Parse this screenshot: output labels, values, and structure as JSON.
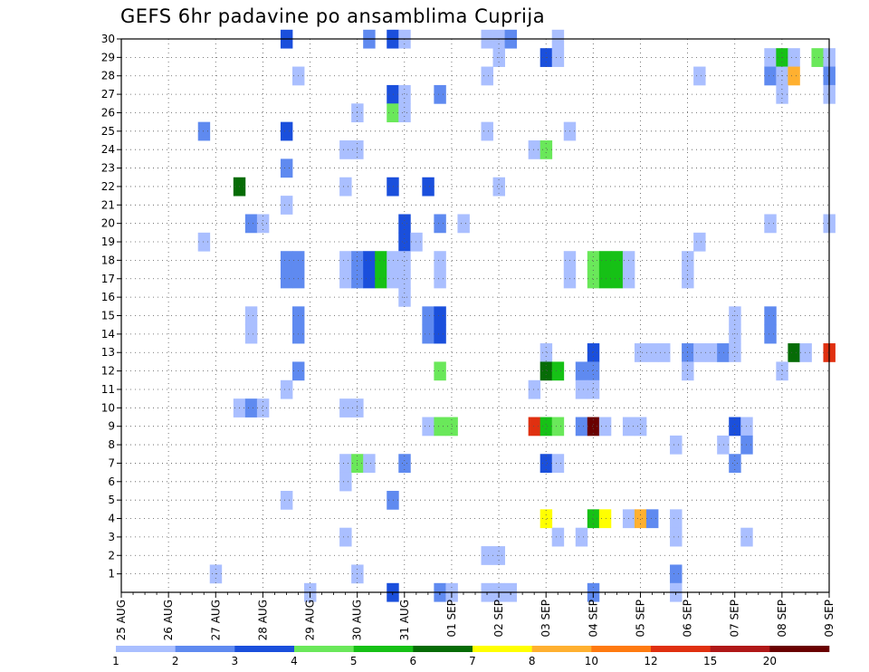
{
  "chart_data": {
    "type": "heatmap",
    "title": "GEFS 6hr padavine po ansamblima Cuprija",
    "xlabel": "",
    "ylabel": "",
    "x_ticks": [
      "25 AUG",
      "26 AUG",
      "27 AUG",
      "28 AUG",
      "29 AUG",
      "30 AUG",
      "31 AUG",
      "01 SEP",
      "02 SEP",
      "03 SEP",
      "04 SEP",
      "05 SEP",
      "06 SEP",
      "07 SEP",
      "08 SEP",
      "09 SEP"
    ],
    "x_range": [
      0,
      60
    ],
    "steps_per_day": 4,
    "y_ticks": [
      1,
      2,
      3,
      4,
      5,
      6,
      7,
      8,
      9,
      10,
      11,
      12,
      13,
      14,
      15,
      16,
      17,
      18,
      19,
      20,
      21,
      22,
      23,
      24,
      25,
      26,
      27,
      28,
      29,
      30
    ],
    "y_range": [
      0,
      30
    ],
    "grid": true,
    "legend_placement": "bottom",
    "legend": {
      "labels": [
        "1",
        "2",
        "3",
        "4",
        "5",
        "6",
        "7",
        "8",
        "10",
        "12",
        "15",
        "20"
      ],
      "colors": [
        "#aabfff",
        "#5f8af0",
        "#1a4fdc",
        "#6ae85a",
        "#16c116",
        "#066c06",
        "#ffff00",
        "#ffb030",
        "#ff7a10",
        "#e03010",
        "#b01818",
        "#6a0000"
      ]
    },
    "cells": [
      {
        "step": 14,
        "member": 30,
        "level": 2
      },
      {
        "step": 21,
        "member": 30,
        "level": 1
      },
      {
        "step": 23,
        "member": 30,
        "level": 2
      },
      {
        "step": 24,
        "member": 30,
        "level": 0
      },
      {
        "step": 31,
        "member": 30,
        "level": 0
      },
      {
        "step": 32,
        "member": 30,
        "level": 0
      },
      {
        "step": 33,
        "member": 30,
        "level": 1
      },
      {
        "step": 37,
        "member": 30,
        "level": 0
      },
      {
        "step": 32,
        "member": 29,
        "level": 0
      },
      {
        "step": 36,
        "member": 29,
        "level": 2
      },
      {
        "step": 37,
        "member": 29,
        "level": 0
      },
      {
        "step": 55,
        "member": 29,
        "level": 0
      },
      {
        "step": 56,
        "member": 29,
        "level": 4
      },
      {
        "step": 57,
        "member": 29,
        "level": 0
      },
      {
        "step": 59,
        "member": 29,
        "level": 3
      },
      {
        "step": 60,
        "member": 29,
        "level": 0
      },
      {
        "step": 15,
        "member": 28,
        "level": 0
      },
      {
        "step": 31,
        "member": 28,
        "level": 0
      },
      {
        "step": 49,
        "member": 28,
        "level": 0
      },
      {
        "step": 55,
        "member": 28,
        "level": 1
      },
      {
        "step": 56,
        "member": 28,
        "level": 0
      },
      {
        "step": 57,
        "member": 28,
        "level": 7
      },
      {
        "step": 60,
        "member": 28,
        "level": 1
      },
      {
        "step": 23,
        "member": 27,
        "level": 2
      },
      {
        "step": 24,
        "member": 27,
        "level": 0
      },
      {
        "step": 27,
        "member": 27,
        "level": 1
      },
      {
        "step": 56,
        "member": 27,
        "level": 0
      },
      {
        "step": 60,
        "member": 27,
        "level": 0
      },
      {
        "step": 20,
        "member": 26,
        "level": 0
      },
      {
        "step": 23,
        "member": 26,
        "level": 3
      },
      {
        "step": 24,
        "member": 26,
        "level": 0
      },
      {
        "step": 7,
        "member": 25,
        "level": 1
      },
      {
        "step": 14,
        "member": 25,
        "level": 2
      },
      {
        "step": 31,
        "member": 25,
        "level": 0
      },
      {
        "step": 38,
        "member": 25,
        "level": 0
      },
      {
        "step": 19,
        "member": 24,
        "level": 0
      },
      {
        "step": 20,
        "member": 24,
        "level": 0
      },
      {
        "step": 35,
        "member": 24,
        "level": 0
      },
      {
        "step": 36,
        "member": 24,
        "level": 3
      },
      {
        "step": 14,
        "member": 23,
        "level": 1
      },
      {
        "step": 10,
        "member": 22,
        "level": 5
      },
      {
        "step": 19,
        "member": 22,
        "level": 0
      },
      {
        "step": 23,
        "member": 22,
        "level": 2
      },
      {
        "step": 26,
        "member": 22,
        "level": 2
      },
      {
        "step": 32,
        "member": 22,
        "level": 0
      },
      {
        "step": 14,
        "member": 21,
        "level": 0
      },
      {
        "step": 11,
        "member": 20,
        "level": 1
      },
      {
        "step": 12,
        "member": 20,
        "level": 0
      },
      {
        "step": 24,
        "member": 20,
        "level": 2
      },
      {
        "step": 27,
        "member": 20,
        "level": 1
      },
      {
        "step": 29,
        "member": 20,
        "level": 0
      },
      {
        "step": 55,
        "member": 20,
        "level": 0
      },
      {
        "step": 60,
        "member": 20,
        "level": 0
      },
      {
        "step": 7,
        "member": 19,
        "level": 0
      },
      {
        "step": 24,
        "member": 19,
        "level": 2
      },
      {
        "step": 25,
        "member": 19,
        "level": 0
      },
      {
        "step": 49,
        "member": 19,
        "level": 0
      },
      {
        "step": 14,
        "member": 18,
        "level": 1
      },
      {
        "step": 15,
        "member": 18,
        "level": 1
      },
      {
        "step": 19,
        "member": 18,
        "level": 0
      },
      {
        "step": 20,
        "member": 18,
        "level": 1
      },
      {
        "step": 21,
        "member": 18,
        "level": 2
      },
      {
        "step": 22,
        "member": 18,
        "level": 4
      },
      {
        "step": 23,
        "member": 18,
        "level": 0
      },
      {
        "step": 24,
        "member": 18,
        "level": 0
      },
      {
        "step": 27,
        "member": 18,
        "level": 0
      },
      {
        "step": 38,
        "member": 18,
        "level": 0
      },
      {
        "step": 40,
        "member": 18,
        "level": 3
      },
      {
        "step": 41,
        "member": 18,
        "level": 4
      },
      {
        "step": 42,
        "member": 18,
        "level": 4
      },
      {
        "step": 43,
        "member": 18,
        "level": 0
      },
      {
        "step": 48,
        "member": 18,
        "level": 0
      },
      {
        "step": 14,
        "member": 17,
        "level": 1
      },
      {
        "step": 15,
        "member": 17,
        "level": 1
      },
      {
        "step": 19,
        "member": 17,
        "level": 0
      },
      {
        "step": 20,
        "member": 17,
        "level": 1
      },
      {
        "step": 21,
        "member": 17,
        "level": 2
      },
      {
        "step": 22,
        "member": 17,
        "level": 4
      },
      {
        "step": 23,
        "member": 17,
        "level": 0
      },
      {
        "step": 24,
        "member": 17,
        "level": 0
      },
      {
        "step": 27,
        "member": 17,
        "level": 0
      },
      {
        "step": 38,
        "member": 17,
        "level": 0
      },
      {
        "step": 40,
        "member": 17,
        "level": 3
      },
      {
        "step": 41,
        "member": 17,
        "level": 4
      },
      {
        "step": 42,
        "member": 17,
        "level": 4
      },
      {
        "step": 43,
        "member": 17,
        "level": 0
      },
      {
        "step": 48,
        "member": 17,
        "level": 0
      },
      {
        "step": 24,
        "member": 16,
        "level": 0
      },
      {
        "step": 11,
        "member": 15,
        "level": 0
      },
      {
        "step": 15,
        "member": 15,
        "level": 1
      },
      {
        "step": 26,
        "member": 15,
        "level": 1
      },
      {
        "step": 27,
        "member": 15,
        "level": 2
      },
      {
        "step": 52,
        "member": 15,
        "level": 0
      },
      {
        "step": 55,
        "member": 15,
        "level": 1
      },
      {
        "step": 11,
        "member": 14,
        "level": 0
      },
      {
        "step": 15,
        "member": 14,
        "level": 1
      },
      {
        "step": 26,
        "member": 14,
        "level": 1
      },
      {
        "step": 27,
        "member": 14,
        "level": 2
      },
      {
        "step": 52,
        "member": 14,
        "level": 0
      },
      {
        "step": 55,
        "member": 14,
        "level": 1
      },
      {
        "step": 36,
        "member": 13,
        "level": 0
      },
      {
        "step": 40,
        "member": 13,
        "level": 2
      },
      {
        "step": 44,
        "member": 13,
        "level": 0
      },
      {
        "step": 45,
        "member": 13,
        "level": 0
      },
      {
        "step": 46,
        "member": 13,
        "level": 0
      },
      {
        "step": 48,
        "member": 13,
        "level": 1
      },
      {
        "step": 49,
        "member": 13,
        "level": 0
      },
      {
        "step": 50,
        "member": 13,
        "level": 0
      },
      {
        "step": 51,
        "member": 13,
        "level": 1
      },
      {
        "step": 52,
        "member": 13,
        "level": 0
      },
      {
        "step": 57,
        "member": 13,
        "level": 5
      },
      {
        "step": 58,
        "member": 13,
        "level": 0
      },
      {
        "step": 60,
        "member": 13,
        "level": 9
      },
      {
        "step": 15,
        "member": 12,
        "level": 1
      },
      {
        "step": 27,
        "member": 12,
        "level": 3
      },
      {
        "step": 36,
        "member": 12,
        "level": 5
      },
      {
        "step": 37,
        "member": 12,
        "level": 4
      },
      {
        "step": 39,
        "member": 12,
        "level": 1
      },
      {
        "step": 40,
        "member": 12,
        "level": 1
      },
      {
        "step": 48,
        "member": 12,
        "level": 0
      },
      {
        "step": 56,
        "member": 12,
        "level": 0
      },
      {
        "step": 14,
        "member": 11,
        "level": 0
      },
      {
        "step": 35,
        "member": 11,
        "level": 0
      },
      {
        "step": 39,
        "member": 11,
        "level": 0
      },
      {
        "step": 40,
        "member": 11,
        "level": 0
      },
      {
        "step": 10,
        "member": 10,
        "level": 0
      },
      {
        "step": 11,
        "member": 10,
        "level": 1
      },
      {
        "step": 12,
        "member": 10,
        "level": 0
      },
      {
        "step": 19,
        "member": 10,
        "level": 0
      },
      {
        "step": 20,
        "member": 10,
        "level": 0
      },
      {
        "step": 26,
        "member": 9,
        "level": 0
      },
      {
        "step": 27,
        "member": 9,
        "level": 3
      },
      {
        "step": 28,
        "member": 9,
        "level": 3
      },
      {
        "step": 35,
        "member": 9,
        "level": 9
      },
      {
        "step": 36,
        "member": 9,
        "level": 4
      },
      {
        "step": 37,
        "member": 9,
        "level": 3
      },
      {
        "step": 39,
        "member": 9,
        "level": 1
      },
      {
        "step": 40,
        "member": 9,
        "level": 11
      },
      {
        "step": 41,
        "member": 9,
        "level": 0
      },
      {
        "step": 43,
        "member": 9,
        "level": 0
      },
      {
        "step": 44,
        "member": 9,
        "level": 0
      },
      {
        "step": 52,
        "member": 9,
        "level": 2
      },
      {
        "step": 53,
        "member": 9,
        "level": 0
      },
      {
        "step": 47,
        "member": 8,
        "level": 0
      },
      {
        "step": 51,
        "member": 8,
        "level": 0
      },
      {
        "step": 53,
        "member": 8,
        "level": 1
      },
      {
        "step": 19,
        "member": 7,
        "level": 0
      },
      {
        "step": 20,
        "member": 7,
        "level": 3
      },
      {
        "step": 21,
        "member": 7,
        "level": 0
      },
      {
        "step": 24,
        "member": 7,
        "level": 1
      },
      {
        "step": 36,
        "member": 7,
        "level": 2
      },
      {
        "step": 37,
        "member": 7,
        "level": 0
      },
      {
        "step": 52,
        "member": 7,
        "level": 1
      },
      {
        "step": 19,
        "member": 6,
        "level": 0
      },
      {
        "step": 14,
        "member": 5,
        "level": 0
      },
      {
        "step": 23,
        "member": 5,
        "level": 1
      },
      {
        "step": 36,
        "member": 4,
        "level": 6
      },
      {
        "step": 40,
        "member": 4,
        "level": 4
      },
      {
        "step": 41,
        "member": 4,
        "level": 6
      },
      {
        "step": 43,
        "member": 4,
        "level": 0
      },
      {
        "step": 44,
        "member": 4,
        "level": 7
      },
      {
        "step": 45,
        "member": 4,
        "level": 1
      },
      {
        "step": 47,
        "member": 4,
        "level": 0
      },
      {
        "step": 19,
        "member": 3,
        "level": 0
      },
      {
        "step": 37,
        "member": 3,
        "level": 0
      },
      {
        "step": 39,
        "member": 3,
        "level": 0
      },
      {
        "step": 47,
        "member": 3,
        "level": 0
      },
      {
        "step": 53,
        "member": 3,
        "level": 0
      },
      {
        "step": 31,
        "member": 2,
        "level": 0
      },
      {
        "step": 32,
        "member": 2,
        "level": 0
      },
      {
        "step": 8,
        "member": 1,
        "level": 0
      },
      {
        "step": 20,
        "member": 1,
        "level": 0
      },
      {
        "step": 47,
        "member": 1,
        "level": 1
      },
      {
        "step": 16,
        "member": 0,
        "level": 0
      },
      {
        "step": 23,
        "member": 0,
        "level": 2
      },
      {
        "step": 27,
        "member": 0,
        "level": 1
      },
      {
        "step": 28,
        "member": 0,
        "level": 0
      },
      {
        "step": 31,
        "member": 0,
        "level": 0
      },
      {
        "step": 32,
        "member": 0,
        "level": 0
      },
      {
        "step": 33,
        "member": 0,
        "level": 0
      },
      {
        "step": 40,
        "member": 0,
        "level": 1
      },
      {
        "step": 47,
        "member": 0,
        "level": 0
      }
    ]
  }
}
